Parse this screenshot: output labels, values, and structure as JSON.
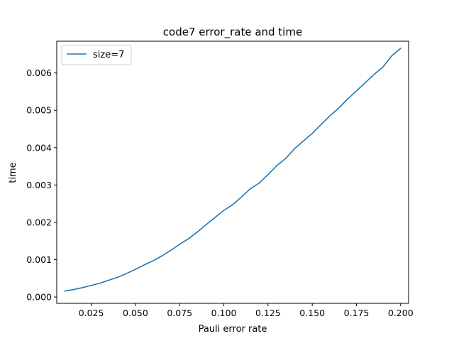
{
  "chart_data": {
    "type": "line",
    "title": "code7 error_rate and time",
    "xlabel": "Pauli error rate",
    "ylabel": "time",
    "xlim": [
      0.0055,
      0.2045
    ],
    "ylim": [
      -0.00017,
      0.00685
    ],
    "xticks": [
      0.025,
      0.05,
      0.075,
      0.1,
      0.125,
      0.15,
      0.175,
      0.2
    ],
    "xtick_labels": [
      "0.025",
      "0.050",
      "0.075",
      "0.100",
      "0.125",
      "0.150",
      "0.175",
      "0.200"
    ],
    "yticks": [
      0.0,
      0.001,
      0.002,
      0.003,
      0.004,
      0.005,
      0.006
    ],
    "ytick_labels": [
      "0.000",
      "0.001",
      "0.002",
      "0.003",
      "0.004",
      "0.005",
      "0.006"
    ],
    "grid": false,
    "legend_position": "upper left",
    "series": [
      {
        "name": "size=7",
        "color": "#1f77b4",
        "x": [
          0.01,
          0.015,
          0.02,
          0.025,
          0.03,
          0.035,
          0.04,
          0.045,
          0.05,
          0.055,
          0.06,
          0.065,
          0.07,
          0.075,
          0.08,
          0.085,
          0.09,
          0.095,
          0.1,
          0.105,
          0.11,
          0.115,
          0.12,
          0.125,
          0.13,
          0.135,
          0.14,
          0.145,
          0.15,
          0.155,
          0.16,
          0.165,
          0.17,
          0.175,
          0.18,
          0.185,
          0.19,
          0.195,
          0.2
        ],
        "y": [
          0.00016,
          0.0002,
          0.00025,
          0.00031,
          0.00037,
          0.00045,
          0.00053,
          0.00063,
          0.00074,
          0.00086,
          0.00097,
          0.0011,
          0.00125,
          0.00141,
          0.00156,
          0.00174,
          0.00194,
          0.00213,
          0.00232,
          0.00247,
          0.00268,
          0.0029,
          0.00305,
          0.00328,
          0.00352,
          0.00371,
          0.00397,
          0.00418,
          0.00438,
          0.00462,
          0.00485,
          0.00506,
          0.0053,
          0.00552,
          0.00574,
          0.00596,
          0.00616,
          0.00646,
          0.00666
        ]
      }
    ]
  }
}
